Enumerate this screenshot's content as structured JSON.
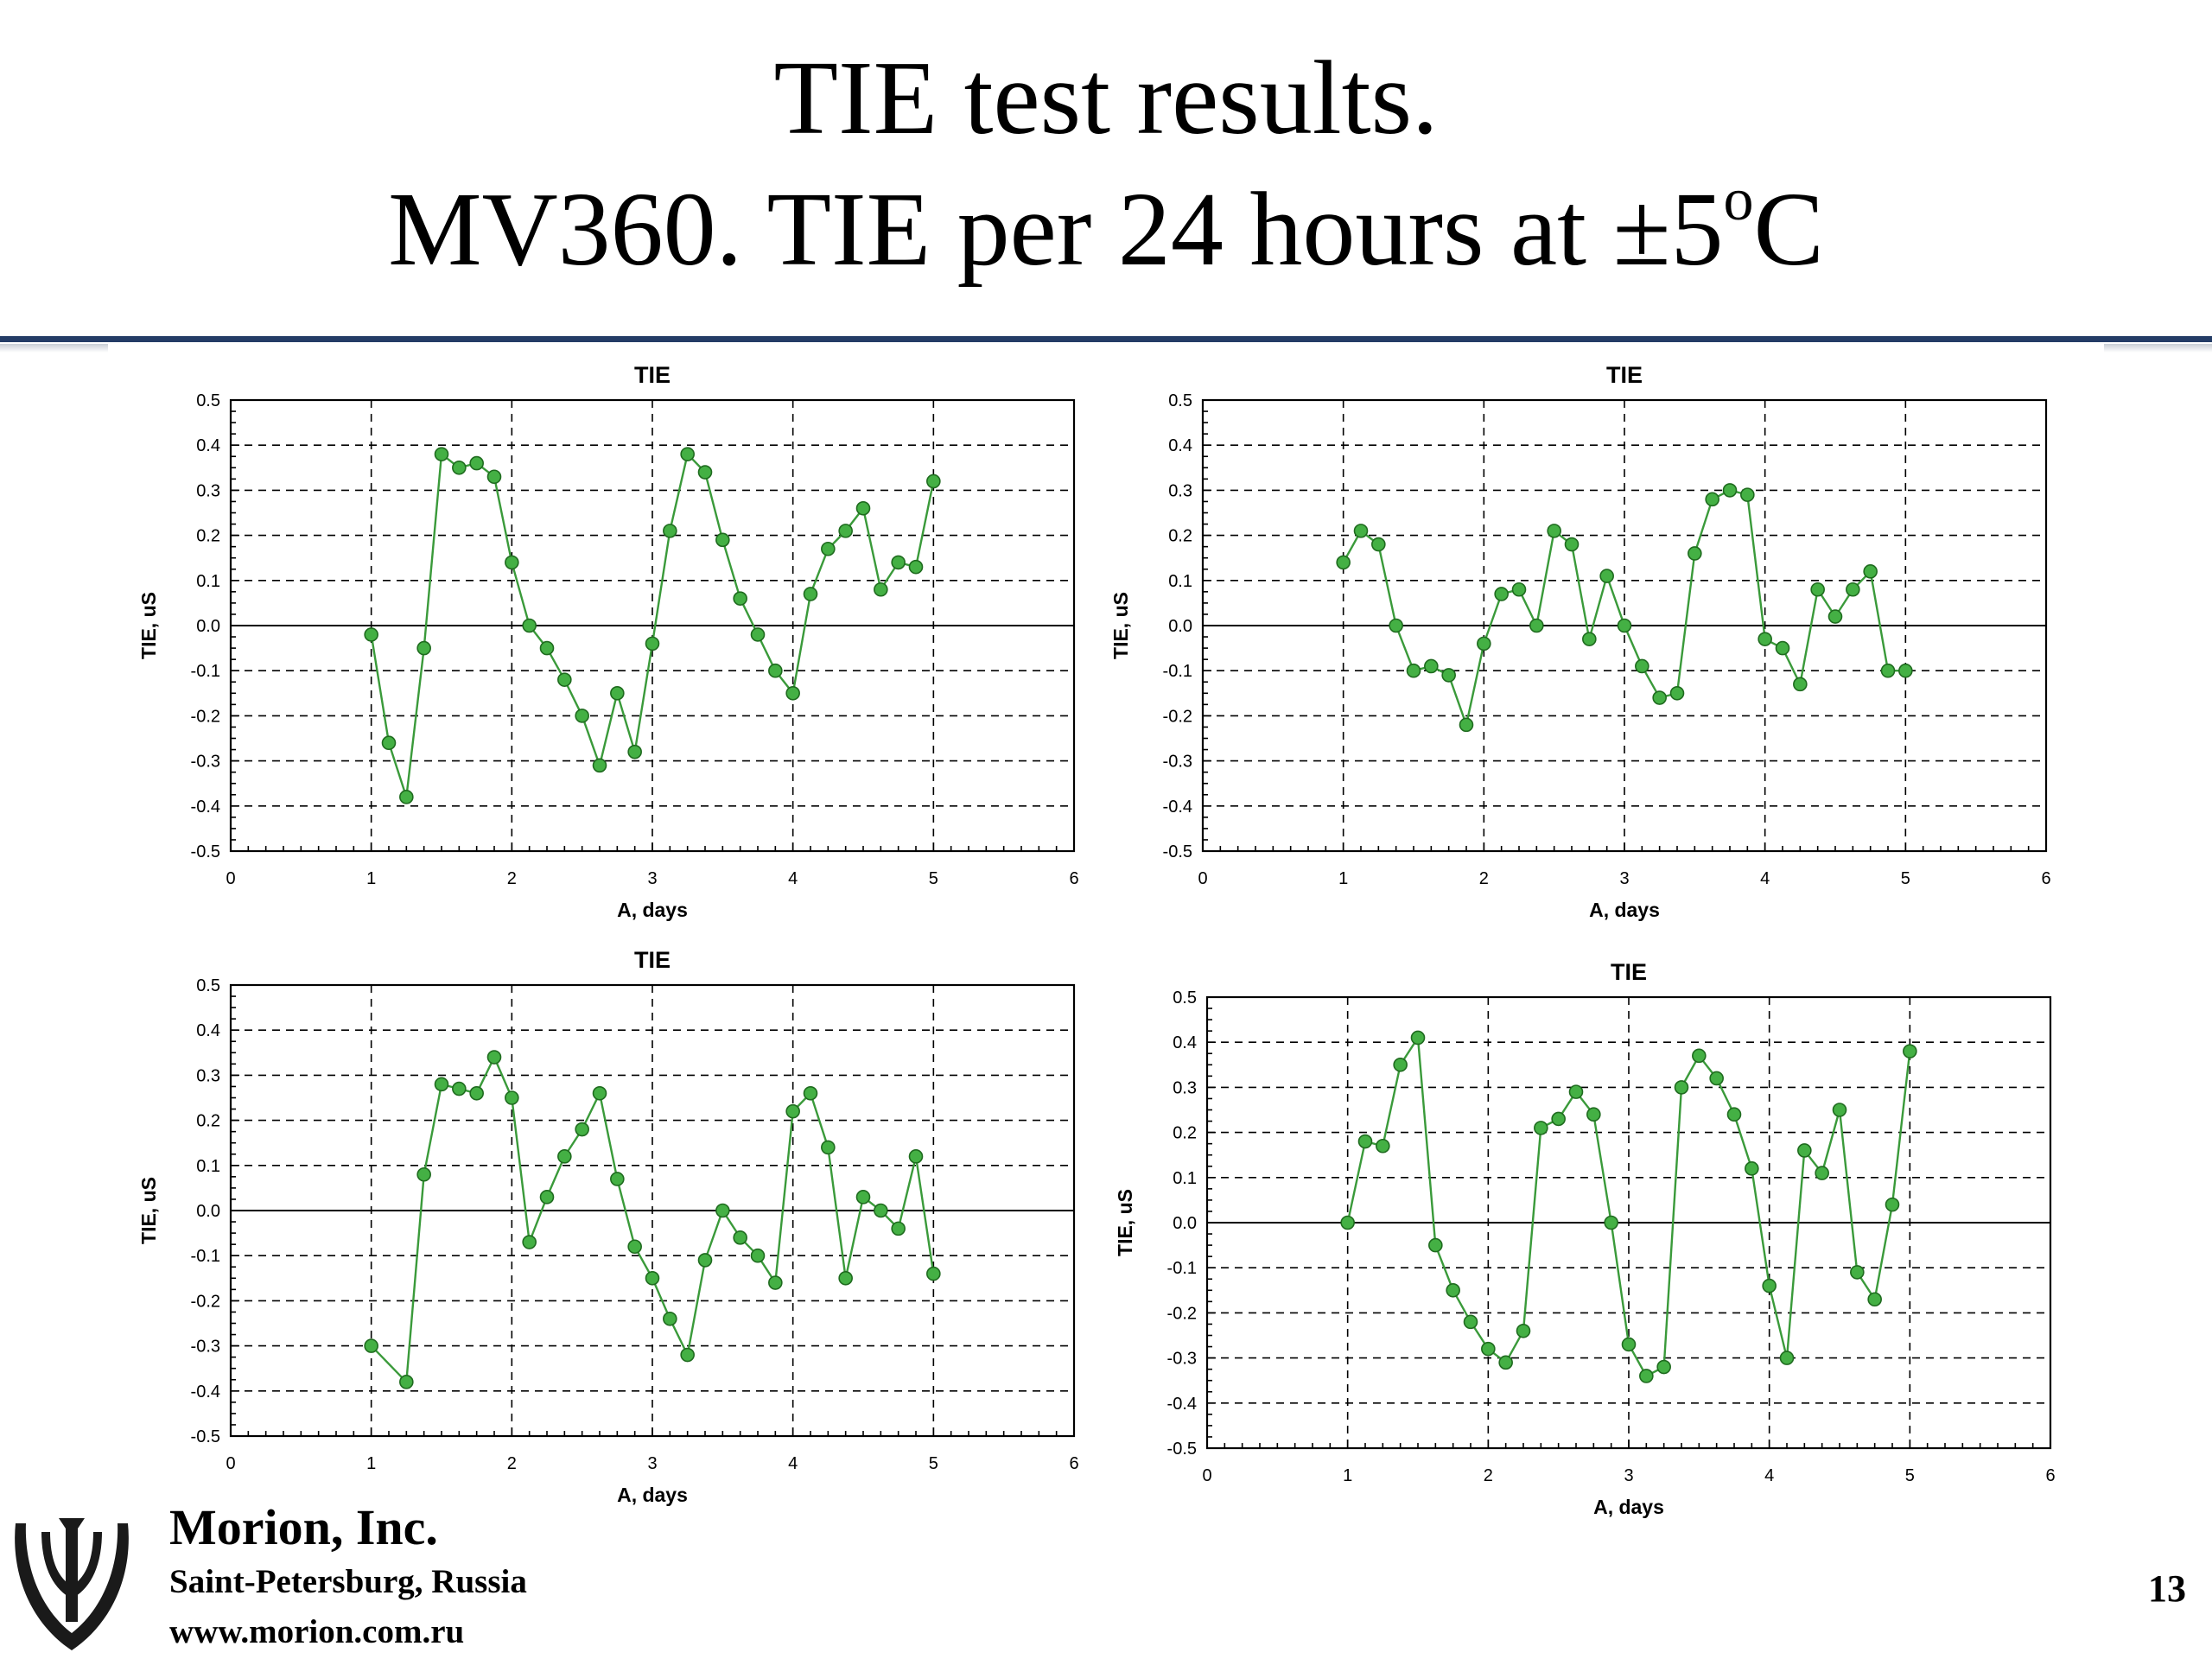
{
  "slide": {
    "title_line1": "TIE test results.",
    "title_line2_prefix": "MV360. TIE per 24 hours at ±5",
    "title_line2_sup": "o",
    "title_line2_suffix": "C"
  },
  "footer": {
    "company": "Morion, Inc.",
    "city": "Saint-Petersburg, Russia",
    "website": "www.morion.com.ru",
    "page_number": "13"
  },
  "colors": {
    "series": "#3a9a3a",
    "marker": "#44b044",
    "rule": "#243c66"
  },
  "chart_data": [
    {
      "type": "line",
      "title": "TIE",
      "xlabel": "A, days",
      "ylabel": "TIE, uS",
      "xlim": [
        0,
        6
      ],
      "ylim": [
        -0.5,
        0.5
      ],
      "grid": true,
      "xticks": [
        0,
        1,
        2,
        3,
        4,
        5,
        6
      ],
      "yticks": [
        -0.5,
        -0.4,
        -0.3,
        -0.2,
        -0.1,
        0.0,
        0.1,
        0.2,
        0.3,
        0.4,
        0.5
      ],
      "series": [
        {
          "x": [
            1.0,
            1.125,
            1.25,
            1.375,
            1.5,
            1.625,
            1.75,
            1.875,
            2.0,
            2.125,
            2.25,
            2.375,
            2.5,
            2.625,
            2.75,
            2.875,
            3.0,
            3.125,
            3.25,
            3.375,
            3.5,
            3.625,
            3.75,
            3.875,
            4.0,
            4.125,
            4.25,
            4.375,
            4.5,
            4.625,
            4.75,
            4.875,
            5.0
          ],
          "y": [
            -0.02,
            -0.26,
            -0.38,
            -0.05,
            0.38,
            0.35,
            0.36,
            0.33,
            0.14,
            0.0,
            -0.05,
            -0.12,
            -0.2,
            -0.31,
            -0.15,
            -0.28,
            -0.04,
            0.21,
            0.38,
            0.34,
            0.19,
            0.06,
            -0.02,
            -0.1,
            -0.15,
            0.07,
            0.17,
            0.21,
            0.26,
            0.08,
            0.14,
            0.13,
            0.32
          ]
        }
      ]
    },
    {
      "type": "line",
      "title": "TIE",
      "xlabel": "A, days",
      "ylabel": "TIE, uS",
      "xlim": [
        0,
        6
      ],
      "ylim": [
        -0.5,
        0.5
      ],
      "grid": true,
      "xticks": [
        0,
        1,
        2,
        3,
        4,
        5,
        6
      ],
      "yticks": [
        -0.5,
        -0.4,
        -0.3,
        -0.2,
        -0.1,
        0.0,
        0.1,
        0.2,
        0.3,
        0.4,
        0.5
      ],
      "series": [
        {
          "x": [
            1.0,
            1.125,
            1.25,
            1.375,
            1.5,
            1.625,
            1.75,
            1.875,
            2.0,
            2.125,
            2.25,
            2.375,
            2.5,
            2.625,
            2.75,
            2.875,
            3.0,
            3.125,
            3.25,
            3.375,
            3.5,
            3.625,
            3.75,
            3.875,
            4.0,
            4.125,
            4.25,
            4.375,
            4.5,
            4.625,
            4.75,
            4.875,
            5.0
          ],
          "y": [
            0.14,
            0.21,
            0.18,
            0.0,
            -0.1,
            -0.09,
            -0.11,
            -0.22,
            -0.04,
            0.07,
            0.08,
            0.0,
            0.21,
            0.18,
            -0.03,
            0.11,
            0.0,
            -0.09,
            -0.16,
            -0.15,
            0.16,
            0.28,
            0.3,
            0.29,
            -0.03,
            -0.05,
            -0.13,
            0.08,
            0.02,
            0.08,
            0.12,
            -0.1,
            -0.1
          ]
        }
      ]
    },
    {
      "type": "line",
      "title": "TIE",
      "xlabel": "A, days",
      "ylabel": "TIE, uS",
      "xlim": [
        0,
        6
      ],
      "ylim": [
        -0.5,
        0.5
      ],
      "grid": true,
      "xticks": [
        0,
        1,
        2,
        3,
        4,
        5,
        6
      ],
      "yticks": [
        -0.5,
        -0.4,
        -0.3,
        -0.2,
        -0.1,
        0.0,
        0.1,
        0.2,
        0.3,
        0.4,
        0.5
      ],
      "series": [
        {
          "x": [
            1.0,
            1.25,
            1.375,
            1.5,
            1.625,
            1.75,
            1.875,
            2.0,
            2.125,
            2.25,
            2.375,
            2.5,
            2.625,
            2.75,
            2.875,
            3.0,
            3.125,
            3.25,
            3.375,
            3.5,
            3.625,
            3.75,
            3.875,
            4.0,
            4.125,
            4.25,
            4.375,
            4.5,
            4.625,
            4.75,
            4.875,
            5.0
          ],
          "y": [
            -0.3,
            -0.38,
            0.08,
            0.28,
            0.27,
            0.26,
            0.34,
            0.25,
            -0.07,
            0.03,
            0.12,
            0.18,
            0.26,
            0.07,
            -0.08,
            -0.15,
            -0.24,
            -0.32,
            -0.11,
            0.0,
            -0.06,
            -0.1,
            -0.16,
            0.22,
            0.26,
            0.14,
            -0.15,
            0.03,
            0.0,
            -0.04,
            0.12,
            -0.14
          ]
        }
      ]
    },
    {
      "type": "line",
      "title": "TIE",
      "xlabel": "A, days",
      "ylabel": "TIE, uS",
      "xlim": [
        0,
        6
      ],
      "ylim": [
        -0.5,
        0.5
      ],
      "grid": true,
      "xticks": [
        0,
        1,
        2,
        3,
        4,
        5,
        6
      ],
      "yticks": [
        -0.5,
        -0.4,
        -0.3,
        -0.2,
        -0.1,
        0.0,
        0.1,
        0.2,
        0.3,
        0.4,
        0.5
      ],
      "series": [
        {
          "x": [
            1.0,
            1.125,
            1.25,
            1.375,
            1.5,
            1.625,
            1.75,
            1.875,
            2.0,
            2.125,
            2.25,
            2.375,
            2.5,
            2.625,
            2.75,
            2.875,
            3.0,
            3.125,
            3.25,
            3.375,
            3.5,
            3.625,
            3.75,
            3.875,
            4.0,
            4.125,
            4.25,
            4.375,
            4.5,
            4.625,
            4.75,
            4.875,
            5.0
          ],
          "y": [
            0.0,
            0.18,
            0.17,
            0.35,
            0.41,
            -0.05,
            -0.15,
            -0.22,
            -0.28,
            -0.31,
            -0.24,
            0.21,
            0.23,
            0.29,
            0.24,
            0.0,
            -0.27,
            -0.34,
            -0.32,
            0.3,
            0.37,
            0.32,
            0.24,
            0.12,
            -0.14,
            -0.3,
            0.16,
            0.11,
            0.25,
            -0.11,
            -0.17,
            0.04,
            0.38
          ]
        }
      ]
    }
  ]
}
